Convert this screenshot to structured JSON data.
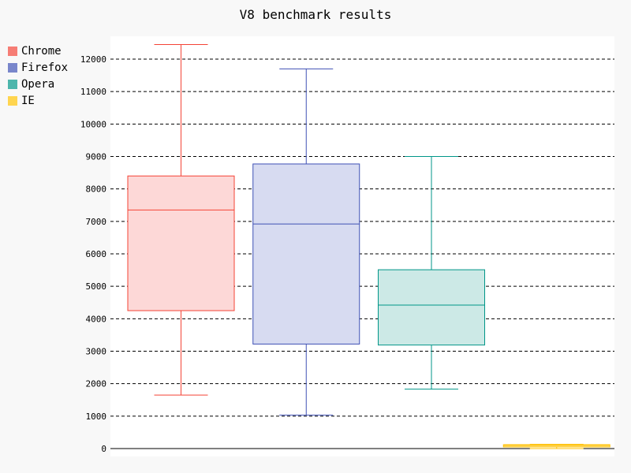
{
  "title": "V8 benchmark results",
  "colors": {
    "background": "#f8f8f8",
    "plot_background": "#ffffff",
    "grid": "#000000"
  },
  "chart_data": {
    "type": "box",
    "title": "V8 benchmark results",
    "xlabel": "",
    "ylabel": "",
    "ylim": [
      0,
      12500
    ],
    "y_ticks": [
      0,
      1000,
      2000,
      3000,
      4000,
      5000,
      6000,
      7000,
      8000,
      9000,
      10000,
      11000,
      12000
    ],
    "grid": "horizontal dashed",
    "legend_position": "top-left outside",
    "series": [
      {
        "name": "Chrome",
        "color": "#f44336",
        "fill": "#fdd8d7",
        "min": 1650,
        "q1": 4250,
        "median": 7350,
        "q3": 8400,
        "max": 12450
      },
      {
        "name": "Firefox",
        "color": "#3f51b5",
        "fill": "#d7dbf1",
        "min": 1030,
        "q1": 3220,
        "median": 6920,
        "q3": 8770,
        "max": 11700
      },
      {
        "name": "Opera",
        "color": "#009688",
        "fill": "#cce9e6",
        "min": 1830,
        "q1": 3190,
        "median": 4420,
        "q3": 5510,
        "max": 9000
      },
      {
        "name": "IE",
        "color": "#ffc107",
        "fill": "#ffe38f",
        "min": 0,
        "q1": 50,
        "median": 100,
        "q3": 120,
        "max": 130
      }
    ]
  }
}
